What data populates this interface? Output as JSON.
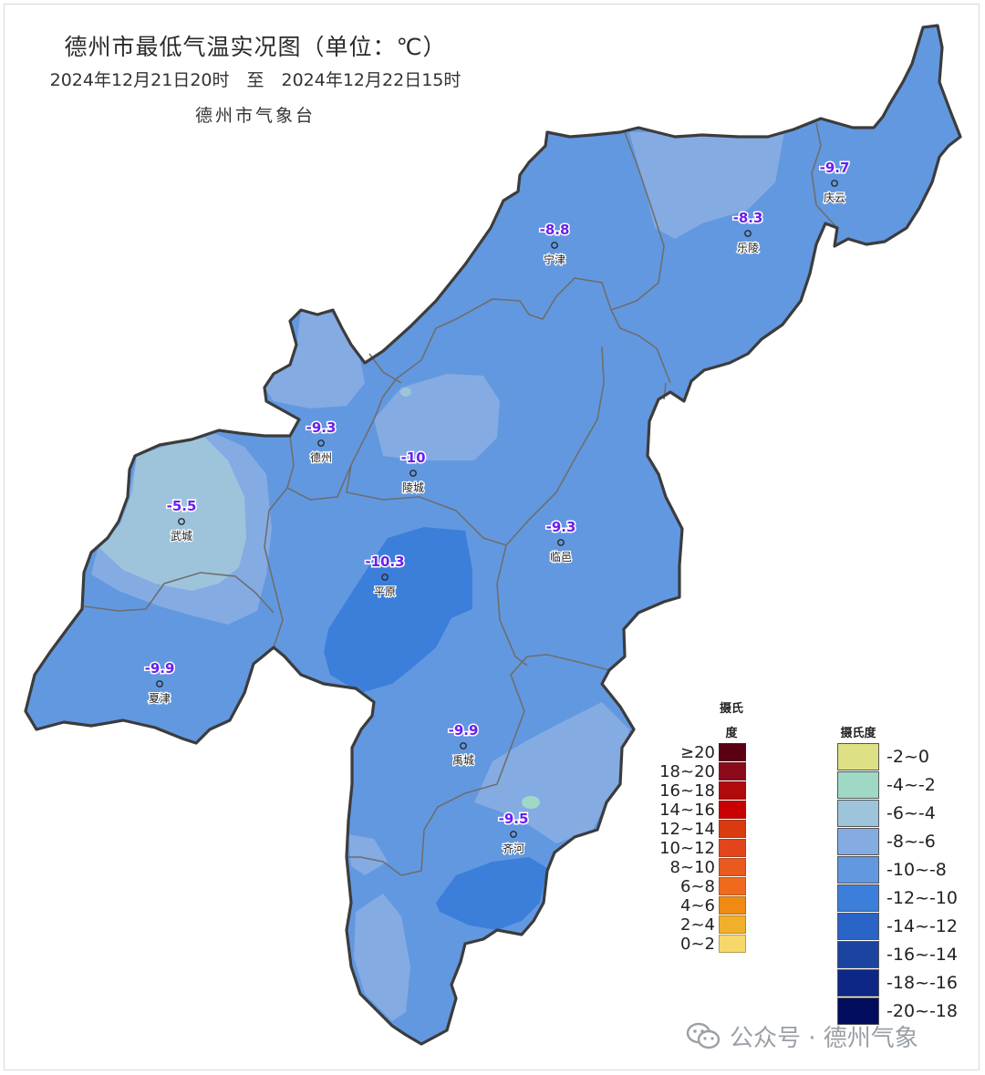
{
  "header": {
    "title": "德州市最低气温实况图（单位：℃）",
    "subtitle": "2024年12月21日20时　至　2024年12月22日15时",
    "issuer": "德州市气象台"
  },
  "stations": [
    {
      "name": "宁津",
      "value": "-8.8"
    },
    {
      "name": "乐陵",
      "value": "-8.3"
    },
    {
      "name": "庆云",
      "value": "-9.7"
    },
    {
      "name": "德州",
      "value": "-9.3"
    },
    {
      "name": "陵城",
      "value": "-10"
    },
    {
      "name": "武城",
      "value": "-5.5"
    },
    {
      "name": "平原",
      "value": "-10.3"
    },
    {
      "name": "临邑",
      "value": "-9.3"
    },
    {
      "name": "夏津",
      "value": "-9.9"
    },
    {
      "name": "禹城",
      "value": "-9.9"
    },
    {
      "name": "齐河",
      "value": "-9.5"
    }
  ],
  "legend_warm": {
    "title_line1": "摄氏",
    "title_line2": "度",
    "items": [
      {
        "label": "≥20",
        "color": "#5a0012"
      },
      {
        "label": "18~20",
        "color": "#8b0a1a"
      },
      {
        "label": "16~18",
        "color": "#b00a0a"
      },
      {
        "label": "14~16",
        "color": "#c80000"
      },
      {
        "label": "12~14",
        "color": "#d93a10"
      },
      {
        "label": "10~12",
        "color": "#e2451c"
      },
      {
        "label": "8~10",
        "color": "#e85a1e"
      },
      {
        "label": "6~8",
        "color": "#f06a1e"
      },
      {
        "label": "4~6",
        "color": "#f08a12"
      },
      {
        "label": "2~4",
        "color": "#f2b02a"
      },
      {
        "label": "0~2",
        "color": "#f5d76a"
      }
    ]
  },
  "legend_cold": {
    "title": "摄氏度",
    "items": [
      {
        "label": "-2~0",
        "color": "#dde183"
      },
      {
        "label": "-4~-2",
        "color": "#9fd9c6"
      },
      {
        "label": "-6~-4",
        "color": "#9ec4dc"
      },
      {
        "label": "-8~-6",
        "color": "#85abe3"
      },
      {
        "label": "-10~-8",
        "color": "#6298e0"
      },
      {
        "label": "-12~-10",
        "color": "#3b7fdb"
      },
      {
        "label": "-14~-12",
        "color": "#2a64c6"
      },
      {
        "label": "-16~-14",
        "color": "#1b43a0"
      },
      {
        "label": "-18~-16",
        "color": "#0e2787"
      },
      {
        "label": "-20~-18",
        "color": "#030d5e"
      }
    ]
  },
  "watermark": {
    "text": "公众号 · 德州气象",
    "icon": "wechat-icon"
  },
  "colors": {
    "base_fill": "#6298e0",
    "border": "#3c3c3c",
    "county_border": "#6e6e6e",
    "value_text": "#6a1ff0"
  }
}
